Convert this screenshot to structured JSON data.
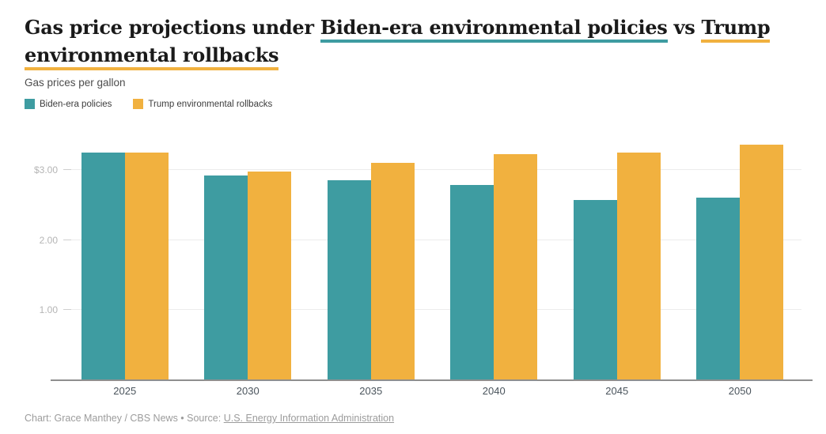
{
  "title": {
    "prefix": "Gas price projections under ",
    "biden_phrase": "Biden-era environmental policies",
    "middle": " vs ",
    "trump_phrase": "Trump environmental rollbacks"
  },
  "subtitle": "Gas prices per gallon",
  "legend": [
    {
      "label": "Biden-era policies",
      "color": "#3E9CA1"
    },
    {
      "label": "Trump environmental rollbacks",
      "color": "#F1B13F"
    }
  ],
  "chart_data": {
    "type": "bar",
    "title": "Gas price projections under Biden-era environmental policies vs Trump environmental rollbacks",
    "subtitle": "Gas prices per gallon",
    "categories": [
      "2025",
      "2030",
      "2035",
      "2040",
      "2045",
      "2050"
    ],
    "series": [
      {
        "name": "Biden-era policies",
        "color": "#3E9CA1",
        "values": [
          3.25,
          2.93,
          2.86,
          2.79,
          2.58,
          2.61
        ]
      },
      {
        "name": "Trump environmental rollbacks",
        "color": "#F1B13F",
        "values": [
          3.25,
          2.98,
          3.11,
          3.23,
          3.25,
          3.37
        ]
      }
    ],
    "xlabel": "",
    "ylabel": "Gas prices per gallon",
    "ylim": [
      0,
      3.5
    ],
    "yticks": [
      {
        "value": 3,
        "label": "$3.00"
      },
      {
        "value": 2,
        "label": "2.00"
      },
      {
        "value": 1,
        "label": "1.00"
      }
    ],
    "grid": true,
    "legend_position": "top-left"
  },
  "footer": {
    "prefix": "Chart: Grace Manthey / CBS News • Source: ",
    "source_link": "U.S. Energy Information Administration"
  },
  "colors": {
    "teal": "#3E9CA1",
    "orange": "#F1B13F",
    "title_text": "#1a1a1a",
    "grid": "#ececec",
    "axis": "#8f8f8f"
  }
}
